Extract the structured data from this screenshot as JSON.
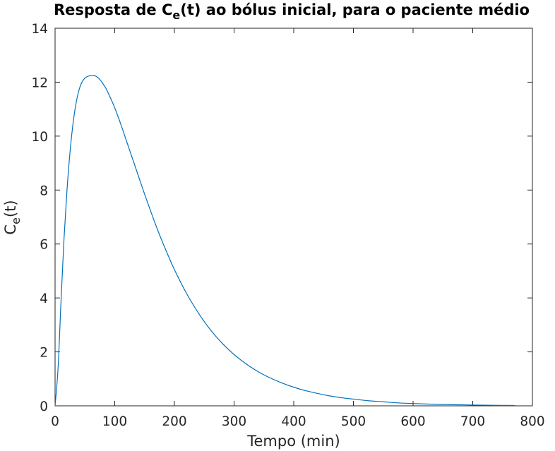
{
  "chart_data": {
    "type": "line",
    "title": {
      "pre": "Resposta de C",
      "sub": "e",
      "post": "(t) ao bólus inicial, para o paciente médio"
    },
    "xlabel": "Tempo (min)",
    "ylabel": {
      "main": "C",
      "sub": "e",
      "post": "(t)"
    },
    "xlim": [
      0,
      800
    ],
    "ylim": [
      0,
      14
    ],
    "xticks": [
      0,
      100,
      200,
      300,
      400,
      500,
      600,
      700,
      800
    ],
    "yticks": [
      0,
      2,
      4,
      6,
      8,
      10,
      12,
      14
    ],
    "grid": false,
    "colors": {
      "series": "#0072BD",
      "axes": "#262626"
    },
    "series": [
      {
        "x": [
          0,
          5,
          10,
          15,
          20,
          25,
          30,
          35,
          40,
          45,
          50,
          55,
          60,
          65,
          70,
          75,
          80,
          85,
          90,
          100,
          110,
          120,
          130,
          140,
          150,
          160,
          170,
          180,
          190,
          200,
          220,
          240,
          260,
          280,
          300,
          320,
          340,
          360,
          380,
          400,
          420,
          440,
          460,
          480,
          500,
          525,
          550,
          575,
          600,
          625,
          650,
          675,
          700,
          725,
          750,
          771
        ],
        "y": [
          0,
          1.4,
          3.9,
          6.2,
          8.0,
          9.4,
          10.45,
          11.2,
          11.7,
          12.0,
          12.15,
          12.22,
          12.24,
          12.25,
          12.2,
          12.1,
          11.95,
          11.78,
          11.55,
          11.05,
          10.45,
          9.8,
          9.15,
          8.5,
          7.85,
          7.23,
          6.63,
          6.07,
          5.55,
          5.05,
          4.18,
          3.45,
          2.83,
          2.32,
          1.9,
          1.56,
          1.27,
          1.04,
          0.85,
          0.69,
          0.56,
          0.46,
          0.37,
          0.3,
          0.25,
          0.19,
          0.15,
          0.11,
          0.085,
          0.065,
          0.05,
          0.04,
          0.03,
          0.022,
          0.017,
          0.013
        ]
      }
    ]
  }
}
